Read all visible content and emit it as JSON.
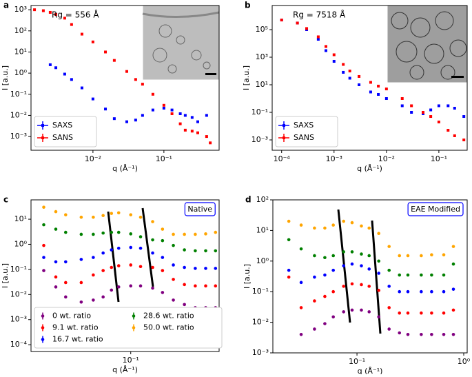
{
  "chart_data": [
    {
      "type": "scatter",
      "label": "a",
      "xlabel": "q (Å⁻¹)",
      "ylabel": "I [a.u.]",
      "xlog": true,
      "ylog": true,
      "xlim": [
        0.00134,
        0.6
      ],
      "ylim": [
        0.000224,
        1585
      ],
      "xticks": [
        {
          "value": 0.01,
          "label": "10⁻²"
        },
        {
          "value": 0.1,
          "label": "10⁻¹"
        }
      ],
      "yticks": [
        {
          "value": 1000,
          "label": "10³"
        },
        {
          "value": 100,
          "label": "10²"
        },
        {
          "value": 10,
          "label": "10¹"
        },
        {
          "value": 1,
          "label": "10⁰"
        },
        {
          "value": 0.1,
          "label": "10⁻¹"
        },
        {
          "value": 0.01,
          "label": "10⁻²"
        },
        {
          "value": 0.001,
          "label": "10⁻³"
        }
      ],
      "annotation": "Rg = 556 Å",
      "annotation_box": false,
      "legend": "lower left",
      "legend_columns": 1,
      "marker": "square",
      "x": [
        0.0015,
        0.002,
        0.0025,
        0.003,
        0.004,
        0.005,
        0.007,
        0.01,
        0.015,
        0.02,
        0.03,
        0.04,
        0.05,
        0.07,
        0.1,
        0.13,
        0.17,
        0.2,
        0.25,
        0.3,
        0.4,
        0.45
      ],
      "series": [
        {
          "name": "SAXS",
          "color": "#0000ff",
          "values": [
            null,
            null,
            2.5,
            1.8,
            0.9,
            0.5,
            0.2,
            0.06,
            0.02,
            0.007,
            0.005,
            0.006,
            0.01,
            0.018,
            0.022,
            0.018,
            0.012,
            0.01,
            0.008,
            0.005,
            0.01,
            null
          ]
        },
        {
          "name": "SANS",
          "color": "#ff0000",
          "values": [
            1000,
            900,
            750,
            600,
            400,
            200,
            70,
            30,
            10,
            4,
            1.2,
            0.5,
            0.3,
            0.1,
            0.03,
            0.012,
            0.004,
            0.002,
            0.0018,
            0.0015,
            0.001,
            0.0005
          ]
        }
      ]
    },
    {
      "type": "scatter",
      "label": "b",
      "xlabel": "q (Å⁻¹)",
      "ylabel": "I [a.u.]",
      "xlog": true,
      "ylog": true,
      "xlim": [
        6.6e-05,
        0.347
      ],
      "ylim": [
        0.000178,
        5620000
      ],
      "xticks": [
        {
          "value": 0.0001,
          "label": "10⁻⁴"
        },
        {
          "value": 0.001,
          "label": "10⁻³"
        },
        {
          "value": 0.01,
          "label": "10⁻²"
        },
        {
          "value": 0.1,
          "label": "10⁻¹"
        }
      ],
      "yticks": [
        {
          "value": 100000,
          "label": "10⁵"
        },
        {
          "value": 1000,
          "label": "10³"
        },
        {
          "value": 10,
          "label": "10¹"
        },
        {
          "value": 0.1,
          "label": "10⁻¹"
        },
        {
          "value": 0.001,
          "label": "10⁻³"
        }
      ],
      "annotation": "Rg = 7518 Å",
      "annotation_box": false,
      "legend": "lower left",
      "legend_columns": 1,
      "marker": "square",
      "x": [
        0.0001,
        0.0002,
        0.0003,
        0.0005,
        0.0007,
        0.001,
        0.0015,
        0.002,
        0.003,
        0.005,
        0.007,
        0.01,
        0.02,
        0.03,
        0.05,
        0.07,
        0.1,
        0.15,
        0.2,
        0.3
      ],
      "series": [
        {
          "name": "SAXS",
          "color": "#0000ff",
          "values": [
            500000,
            300000,
            100000,
            20000,
            3000,
            500,
            80,
            30,
            10,
            3,
            2,
            1,
            0.3,
            0.1,
            0.08,
            0.15,
            0.3,
            0.3,
            0.2,
            0.05
          ]
        },
        {
          "name": "SANS",
          "color": "#ff0000",
          "values": [
            500000,
            300000,
            120000,
            30000,
            6000,
            1500,
            300,
            100,
            40,
            15,
            8,
            5,
            1,
            0.3,
            0.1,
            0.05,
            0.02,
            0.005,
            0.002,
            0.001
          ]
        }
      ]
    },
    {
      "type": "scatter",
      "label": "c",
      "xlabel": "q (Å⁻¹)",
      "ylabel": "I [a.u.]",
      "xlog": true,
      "ylog": true,
      "xlim": [
        0.0158,
        0.513
      ],
      "ylim": [
        5.37e-05,
        58.9
      ],
      "xticks": [
        {
          "value": 0.1,
          "label": "10⁻¹"
        }
      ],
      "yticks": [
        {
          "value": 10,
          "label": "10¹"
        },
        {
          "value": 1,
          "label": "10⁰"
        },
        {
          "value": 0.1,
          "label": "10⁻¹"
        },
        {
          "value": 0.01,
          "label": "10⁻²"
        },
        {
          "value": 0.001,
          "label": "10⁻³"
        },
        {
          "value": 0.0001,
          "label": "10⁻⁴"
        }
      ],
      "annotation": "Native",
      "annotation_box": true,
      "legend": "lower left",
      "legend_columns": 2,
      "marker": "circle",
      "x": [
        0.02,
        0.025,
        0.03,
        0.04,
        0.05,
        0.06,
        0.07,
        0.08,
        0.1,
        0.12,
        0.15,
        0.18,
        0.22,
        0.27,
        0.33,
        0.4,
        0.48
      ],
      "series": [
        {
          "name": "0 wt. ratio",
          "color": "#800080",
          "values": [
            0.09,
            0.02,
            0.008,
            0.005,
            0.006,
            0.008,
            0.015,
            0.02,
            0.022,
            0.022,
            0.018,
            0.012,
            0.006,
            0.004,
            0.003,
            0.003,
            0.003
          ]
        },
        {
          "name": "9.1 wt. ratio",
          "color": "#ff0000",
          "values": [
            0.9,
            0.05,
            0.03,
            0.03,
            0.06,
            0.09,
            0.12,
            0.14,
            0.15,
            0.13,
            0.12,
            0.09,
            0.04,
            0.025,
            0.022,
            0.022,
            0.022
          ]
        },
        {
          "name": "16.7 wt. ratio",
          "color": "#0000ff",
          "values": [
            0.3,
            0.2,
            0.2,
            0.25,
            0.3,
            0.45,
            0.6,
            0.7,
            0.75,
            0.7,
            0.45,
            0.3,
            0.15,
            0.12,
            0.11,
            0.11,
            0.11
          ]
        },
        {
          "name": "28.6 wt. ratio",
          "color": "#008000",
          "values": [
            6,
            4,
            3,
            2.5,
            2.5,
            2.8,
            3,
            3,
            2.6,
            2,
            1.5,
            1.4,
            0.9,
            0.6,
            0.55,
            0.55,
            0.55
          ]
        },
        {
          "name": "50.0 wt. ratio",
          "color": "#ffa500",
          "values": [
            30,
            20,
            15,
            12,
            12,
            14,
            17,
            18,
            15,
            12,
            8,
            4,
            2.5,
            2.5,
            2.5,
            2.6,
            3
          ]
        }
      ]
    },
    {
      "type": "scatter",
      "label": "d",
      "xlabel": "q (Å⁻¹)",
      "ylabel": "I [a.u.]",
      "xlog": true,
      "ylog": true,
      "xlim": [
        0.0163,
        1.077
      ],
      "ylim": [
        0.001,
        100
      ],
      "xticks": [
        {
          "value": 0.1,
          "label": "10⁻¹"
        },
        {
          "value": 1,
          "label": "10⁰"
        }
      ],
      "yticks": [
        {
          "value": 100,
          "label": "10²"
        },
        {
          "value": 10,
          "label": "10¹"
        },
        {
          "value": 1,
          "label": "10⁰"
        },
        {
          "value": 0.1,
          "label": "10⁻¹"
        },
        {
          "value": 0.01,
          "label": "10⁻²"
        },
        {
          "value": 0.001,
          "label": "10⁻³"
        }
      ],
      "annotation": "EAE Modified",
      "annotation_box": true,
      "marker": "circle",
      "x": [
        0.023,
        0.03,
        0.04,
        0.05,
        0.06,
        0.075,
        0.09,
        0.11,
        0.13,
        0.16,
        0.2,
        0.25,
        0.3,
        0.4,
        0.5,
        0.65,
        0.8
      ],
      "series": [
        {
          "color": "#800080",
          "values": [
            null,
            0.004,
            0.006,
            0.009,
            0.015,
            0.022,
            0.025,
            0.025,
            0.022,
            0.015,
            0.006,
            0.0045,
            0.004,
            0.004,
            0.004,
            0.004,
            0.004
          ]
        },
        {
          "color": "#ff0000",
          "values": [
            0.3,
            0.03,
            0.05,
            0.07,
            0.1,
            0.15,
            0.18,
            0.17,
            0.15,
            0.11,
            0.03,
            0.02,
            0.02,
            0.02,
            0.02,
            0.02,
            0.025
          ]
        },
        {
          "color": "#0000ff",
          "values": [
            0.5,
            0.2,
            0.3,
            0.35,
            0.5,
            0.7,
            0.8,
            0.7,
            0.55,
            0.4,
            0.15,
            0.1,
            0.1,
            0.1,
            0.1,
            0.1,
            0.12
          ]
        },
        {
          "color": "#008000",
          "values": [
            5,
            2.5,
            1.5,
            1.3,
            1.5,
            2,
            2,
            1.7,
            1.5,
            1,
            0.5,
            0.35,
            0.35,
            0.35,
            0.35,
            0.35,
            0.8
          ]
        },
        {
          "color": "#ffa500",
          "values": [
            20,
            15,
            12,
            12,
            15,
            20,
            18,
            14,
            12,
            8,
            3,
            1.5,
            1.5,
            1.5,
            1.6,
            1.6,
            3
          ]
        }
      ]
    }
  ]
}
